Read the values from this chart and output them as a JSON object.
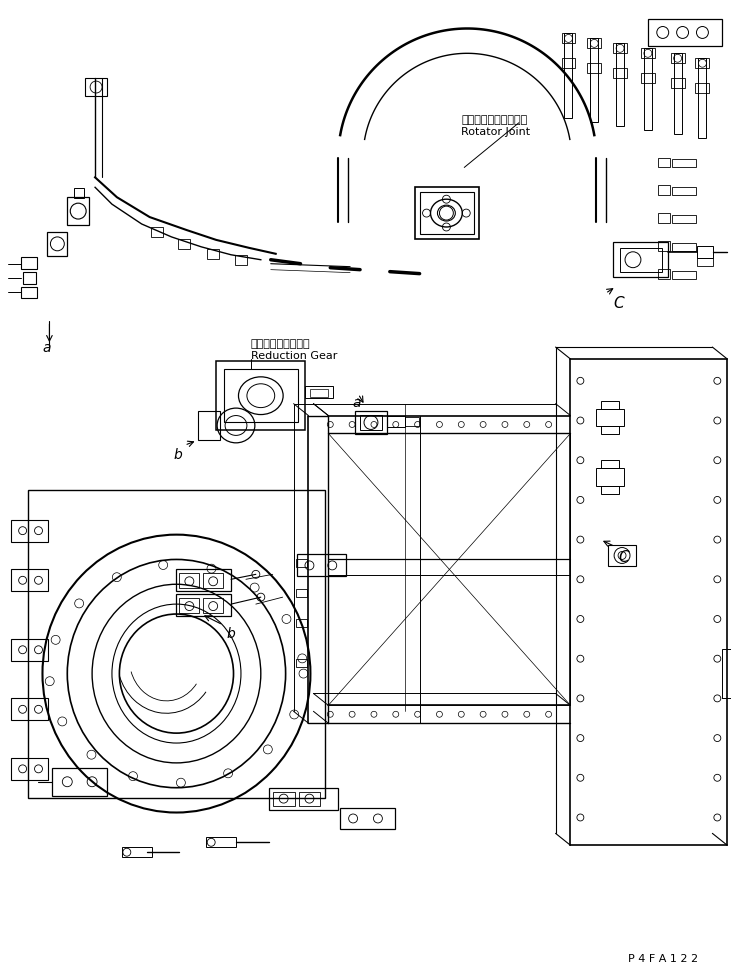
{
  "bg_color": "#ffffff",
  "line_color": "#000000",
  "title_code": "P 4 F A 1 2 2",
  "label_rotator_joint_jp": "ロータータジョイント",
  "label_rotator_joint_en": "Rotator Joint",
  "label_reduction_gear_jp": "リタクションギヤー",
  "label_reduction_gear_en": "Reduction Gear",
  "label_a": "a",
  "label_b": "b",
  "label_C": "C",
  "figsize": [
    7.34,
    9.74
  ],
  "dpi": 100
}
